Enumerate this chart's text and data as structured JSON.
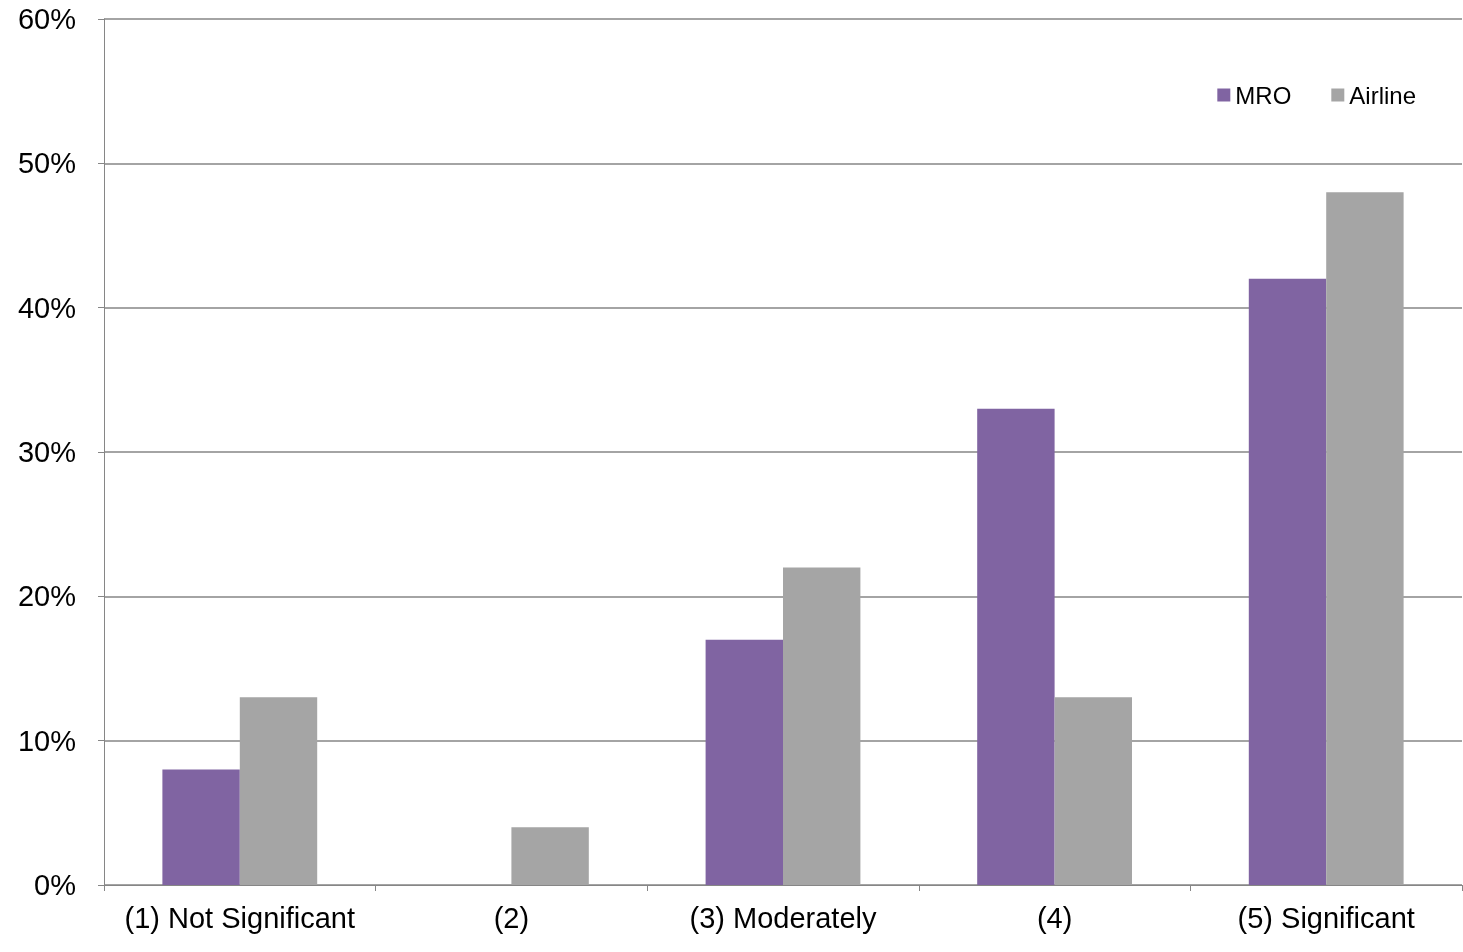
{
  "chart_data": {
    "type": "bar",
    "categories": [
      "(1) Not Significant",
      "(2)",
      "(3) Moderately",
      "(4)",
      "(5) Significant"
    ],
    "series": [
      {
        "name": "MRO",
        "color": "#8064a2",
        "values": [
          8,
          0,
          17,
          33,
          42
        ]
      },
      {
        "name": "Airline",
        "color": "#a5a5a5",
        "values": [
          13,
          4,
          22,
          13,
          48
        ]
      }
    ],
    "ylim": [
      0,
      60
    ],
    "yticks": [
      {
        "value": 0,
        "label": "0%"
      },
      {
        "value": 10,
        "label": "10%"
      },
      {
        "value": 20,
        "label": "20%"
      },
      {
        "value": 30,
        "label": "30%"
      },
      {
        "value": 40,
        "label": "40%"
      },
      {
        "value": 50,
        "label": "50%"
      },
      {
        "value": 60,
        "label": "60%"
      }
    ],
    "grid": "y",
    "legend": "top right"
  }
}
